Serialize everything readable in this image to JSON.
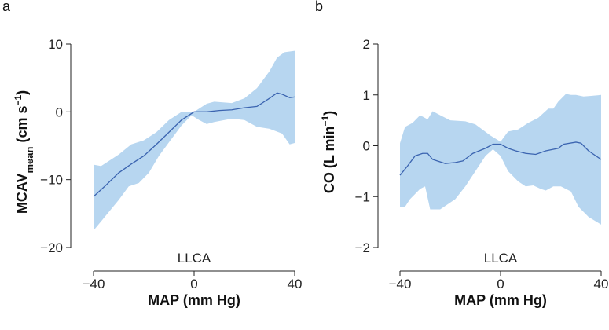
{
  "chart_data": [
    {
      "type": "area",
      "panel_label": "a",
      "annotation": "LLCA",
      "xlabel": "MAP (mm Hg)",
      "ylabel": {
        "main": "MCAV",
        "sub": "mean",
        "unit_pre": " (cm s",
        "sup": "−1",
        "unit_post": ")"
      },
      "xlim": [
        -40,
        40
      ],
      "ylim": [
        -20,
        10
      ],
      "xticks": [
        -40,
        0,
        40
      ],
      "xtick_labels": [
        "−40",
        "0",
        "40"
      ],
      "yticks": [
        -20,
        -10,
        0,
        10
      ],
      "ytick_labels": [
        "−20",
        "−10",
        "0",
        "10"
      ],
      "fill_color": "#b7d6f0",
      "line_color": "#3b64b0",
      "mean": {
        "x": [
          -40,
          -35,
          -30,
          -25,
          -20,
          -15,
          -10,
          -5,
          0,
          5,
          10,
          15,
          20,
          25,
          30,
          33,
          35,
          38,
          40
        ],
        "y": [
          -12.5,
          -10.8,
          -9,
          -7.7,
          -6.5,
          -4.8,
          -3,
          -1.2,
          0,
          0,
          0.2,
          0.3,
          0.6,
          0.8,
          2,
          2.8,
          2.6,
          2.1,
          2.2
        ]
      },
      "upper": {
        "x": [
          -40,
          -37,
          -30,
          -25,
          -20,
          -15,
          -10,
          -5,
          0,
          5,
          8,
          15,
          20,
          25,
          30,
          33,
          36,
          40
        ],
        "y": [
          -7.8,
          -8,
          -6.3,
          -4.8,
          -4.2,
          -3,
          -1.2,
          0,
          0,
          1.2,
          1.5,
          1.3,
          2,
          3.5,
          6,
          8,
          8.8,
          9
        ]
      },
      "lower": {
        "x": [
          -40,
          -30,
          -26,
          -22,
          -18,
          -14,
          -10,
          -5,
          -1,
          2,
          5,
          8,
          15,
          20,
          25,
          30,
          35,
          38,
          40
        ],
        "y": [
          -17.5,
          -13,
          -11,
          -10.5,
          -9,
          -6.5,
          -4.5,
          -2,
          -0.5,
          -1.2,
          -1.8,
          -1.5,
          -1,
          -1.2,
          -2.2,
          -2.5,
          -3.2,
          -4.8,
          -4.6
        ]
      }
    },
    {
      "type": "area",
      "panel_label": "b",
      "annotation": "LLCA",
      "xlabel": "MAP (mm Hg)",
      "ylabel": {
        "main": "CO",
        "sub": "",
        "unit_pre": " (L min",
        "sup": "−1",
        "unit_post": ")"
      },
      "xlim": [
        -40,
        40
      ],
      "ylim": [
        -2,
        2
      ],
      "xticks": [
        -40,
        0,
        40
      ],
      "xtick_labels": [
        "−40",
        "0",
        "40"
      ],
      "yticks": [
        -2,
        -1,
        0,
        1,
        2
      ],
      "ytick_labels": [
        "−2",
        "−1",
        "0",
        "1",
        "2"
      ],
      "fill_color": "#b7d6f0",
      "line_color": "#3b64b0",
      "mean": {
        "x": [
          -40,
          -37,
          -34,
          -31,
          -29,
          -27,
          -22,
          -18,
          -15,
          -11,
          -6,
          -3,
          0,
          3,
          6,
          10,
          14,
          18,
          23,
          25,
          30,
          32,
          35,
          40
        ],
        "y": [
          -0.58,
          -0.4,
          -0.2,
          -0.15,
          -0.15,
          -0.27,
          -0.35,
          -0.33,
          -0.3,
          -0.15,
          -0.05,
          0.03,
          0.03,
          -0.05,
          -0.1,
          -0.15,
          -0.17,
          -0.1,
          -0.05,
          0.03,
          0.07,
          0.05,
          -0.1,
          -0.27
        ]
      },
      "upper": {
        "x": [
          -40,
          -38,
          -35,
          -32,
          -29,
          -27,
          -24,
          -20,
          -14,
          -10,
          -4,
          0,
          3,
          7,
          11,
          15,
          19,
          21,
          23,
          26,
          28,
          30,
          33,
          36,
          40
        ],
        "y": [
          0.05,
          0.37,
          0.45,
          0.6,
          0.52,
          0.68,
          0.6,
          0.5,
          0.48,
          0.42,
          0.2,
          0.08,
          0.28,
          0.32,
          0.45,
          0.55,
          0.73,
          0.73,
          0.87,
          1.02,
          1.0,
          1.0,
          0.97,
          0.98,
          1.0
        ]
      },
      "lower": {
        "x": [
          -40,
          -38,
          -36,
          -34,
          -32,
          -30,
          -28,
          -24,
          -21,
          -18,
          -14,
          -10,
          -6,
          -3,
          0,
          3,
          7,
          10,
          13,
          16,
          18,
          21,
          24,
          26,
          28,
          31,
          35,
          40
        ],
        "y": [
          -1.2,
          -1.2,
          -1.05,
          -0.95,
          -0.85,
          -0.8,
          -1.25,
          -1.25,
          -1.15,
          -1.05,
          -0.8,
          -0.5,
          -0.2,
          -0.07,
          -0.2,
          -0.5,
          -0.7,
          -0.8,
          -0.78,
          -0.85,
          -0.88,
          -0.8,
          -0.8,
          -0.85,
          -0.9,
          -1.2,
          -1.4,
          -1.55
        ]
      }
    }
  ]
}
